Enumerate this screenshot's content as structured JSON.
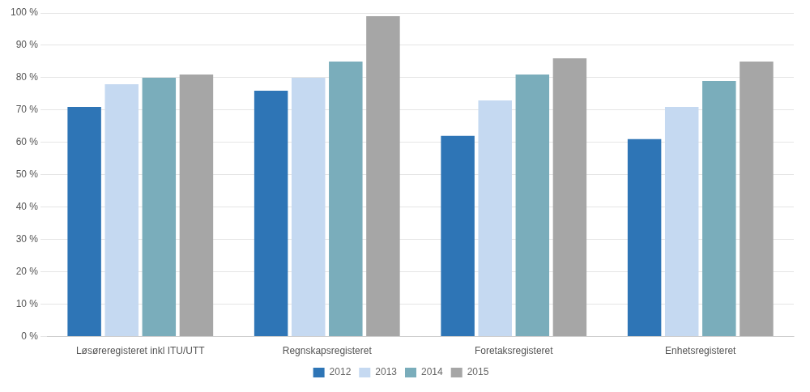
{
  "chart_data": {
    "type": "bar",
    "categories": [
      "Løsøreregisteret inkl ITU/UTT",
      "Regnskapsregisteret",
      "Foretaksregisteret",
      "Enhetsregisteret"
    ],
    "series": [
      {
        "name": "2012",
        "color": "#2E75B6",
        "values": [
          71,
          76,
          62,
          61
        ]
      },
      {
        "name": "2013",
        "color": "#C5D9F1",
        "values": [
          78,
          80,
          73,
          71
        ]
      },
      {
        "name": "2014",
        "color": "#7AADBB",
        "values": [
          80,
          85,
          81,
          79
        ]
      },
      {
        "name": "2015",
        "color": "#A6A6A6",
        "values": [
          81,
          99,
          86,
          85
        ]
      }
    ],
    "ylim": [
      0,
      100
    ],
    "yticks": [
      {
        "value": 0,
        "label": "0 %"
      },
      {
        "value": 10,
        "label": "10 %"
      },
      {
        "value": 20,
        "label": "20 %"
      },
      {
        "value": 30,
        "label": "30 %"
      },
      {
        "value": 40,
        "label": "40 %"
      },
      {
        "value": 50,
        "label": "50 %"
      },
      {
        "value": 60,
        "label": "60 %"
      },
      {
        "value": 70,
        "label": "70 %"
      },
      {
        "value": 80,
        "label": "80 %"
      },
      {
        "value": 90,
        "label": "90 %"
      },
      {
        "value": 100,
        "label": "100 %"
      }
    ],
    "grid": true,
    "legend": "bottom"
  }
}
